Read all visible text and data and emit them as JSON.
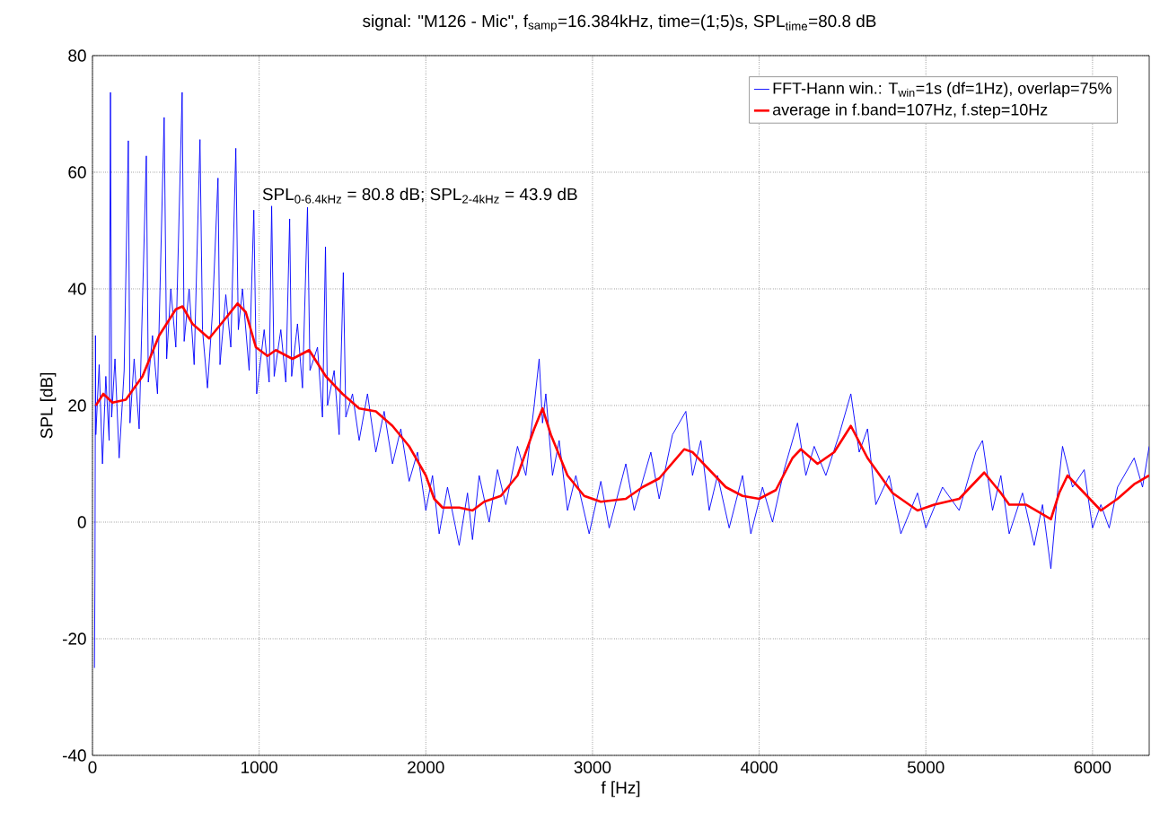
{
  "chart_data": {
    "type": "line",
    "title": "signal: \"M126 - Mic\",  f$_{samp}$=16.384kHz,  time=(1;5)s,  SPL$_{time}$=80.8 dB",
    "xlabel": "f [Hz]",
    "ylabel": "SPL [dB]",
    "annotations": [
      "SPL$_{0-6.4kHz}$ = 80.8 dB;    SPL$_{2-4kHz}$ = 43.9 dB"
    ],
    "xlim": [
      0,
      6340
    ],
    "ylim": [
      -40,
      80
    ],
    "xticks": [
      0,
      1000,
      2000,
      3000,
      4000,
      5000,
      6000
    ],
    "yticks": [
      -40,
      -20,
      0,
      20,
      40,
      60,
      80
    ],
    "grid": true,
    "legend": "top right",
    "line_style": "solid",
    "marker": "none",
    "series": [
      {
        "name": "FFT-Hann win.: T$_{win}$=1s (df=1Hz), overlap=75%",
        "color": "#0000ff",
        "x": [
          12,
          15,
          18,
          20,
          40,
          60,
          80,
          100,
          108,
          115,
          135,
          160,
          190,
          215,
          225,
          250,
          280,
          323,
          335,
          360,
          390,
          430,
          445,
          470,
          500,
          538,
          550,
          580,
          610,
          645,
          660,
          690,
          720,
          753,
          765,
          800,
          830,
          860,
          875,
          900,
          940,
          968,
          985,
          1030,
          1060,
          1075,
          1090,
          1130,
          1160,
          1183,
          1195,
          1230,
          1260,
          1290,
          1305,
          1350,
          1380,
          1398,
          1410,
          1450,
          1480,
          1505,
          1520,
          1560,
          1600,
          1650,
          1700,
          1750,
          1800,
          1850,
          1900,
          1950,
          2000,
          2040,
          2080,
          2130,
          2200,
          2250,
          2280,
          2320,
          2380,
          2430,
          2480,
          2550,
          2600,
          2650,
          2680,
          2700,
          2720,
          2760,
          2800,
          2850,
          2900,
          2980,
          3050,
          3100,
          3200,
          3250,
          3350,
          3400,
          3480,
          3560,
          3600,
          3650,
          3700,
          3750,
          3820,
          3900,
          3950,
          4020,
          4080,
          4150,
          4230,
          4280,
          4330,
          4400,
          4480,
          4550,
          4600,
          4650,
          4700,
          4780,
          4850,
          4950,
          5000,
          5100,
          5200,
          5300,
          5340,
          5400,
          5450,
          5500,
          5580,
          5650,
          5700,
          5750,
          5790,
          5820,
          5880,
          5950,
          6000,
          6050,
          6100,
          6150,
          6250,
          6300,
          6340
        ],
        "values": [
          -25,
          -8,
          32,
          15,
          27,
          10,
          25,
          14,
          73.7,
          18,
          28,
          11,
          26,
          65.4,
          17,
          28,
          16,
          62.8,
          24,
          32,
          22,
          69.4,
          28,
          40,
          30,
          73.7,
          31,
          40,
          27,
          65.6,
          33,
          23,
          36,
          59,
          27,
          39,
          30,
          64.1,
          33,
          40,
          26,
          53.5,
          22,
          33,
          24,
          54.2,
          25,
          33,
          24,
          52,
          25,
          34,
          23,
          54,
          26,
          30,
          18,
          47.2,
          20,
          26,
          15,
          42.8,
          18,
          22,
          14,
          22,
          12,
          19,
          10,
          16,
          7,
          12,
          2,
          8,
          -2,
          6,
          -4,
          5,
          -3,
          8,
          0,
          9,
          3,
          13,
          8,
          20,
          28,
          17,
          22,
          8,
          14,
          2,
          8,
          -2,
          7,
          -1,
          10,
          2,
          12,
          4,
          15,
          19,
          8,
          14,
          2,
          8,
          -1,
          8,
          -2,
          6,
          0,
          9,
          17,
          8,
          13,
          8,
          15,
          22,
          12,
          16,
          3,
          8,
          -2,
          5,
          -1,
          6,
          2,
          12,
          14,
          2,
          8,
          -2,
          5,
          -4,
          3,
          -8,
          5,
          13,
          6,
          9,
          -1,
          3,
          -1,
          6,
          11,
          6,
          13
        ]
      },
      {
        "name": "average in f.band=107Hz, f.step=10Hz",
        "color": "#ff0000",
        "x": [
          20,
          65,
          120,
          200,
          300,
          400,
          500,
          540,
          600,
          700,
          800,
          870,
          920,
          980,
          1050,
          1100,
          1200,
          1300,
          1400,
          1500,
          1600,
          1700,
          1800,
          1900,
          2000,
          2050,
          2100,
          2200,
          2280,
          2350,
          2450,
          2550,
          2650,
          2700,
          2750,
          2850,
          2950,
          3050,
          3200,
          3300,
          3400,
          3550,
          3600,
          3700,
          3800,
          3900,
          4000,
          4100,
          4200,
          4250,
          4350,
          4450,
          4550,
          4650,
          4800,
          4950,
          5050,
          5200,
          5300,
          5350,
          5450,
          5500,
          5600,
          5750,
          5800,
          5850,
          5950,
          6050,
          6150,
          6250,
          6340
        ],
        "values": [
          20,
          22,
          20.5,
          21,
          25,
          32,
          36.5,
          37,
          34,
          31.5,
          35,
          37.5,
          36,
          30,
          28.5,
          29.5,
          28,
          29.5,
          25,
          22,
          19.5,
          19,
          16.5,
          13,
          8,
          4,
          2.5,
          2.5,
          2,
          3.5,
          4.5,
          8,
          16,
          19.5,
          15,
          8,
          4.5,
          3.5,
          4,
          6,
          7.5,
          12.5,
          12,
          9,
          6,
          4.5,
          4,
          5.5,
          11,
          12.5,
          10,
          12,
          16.5,
          11,
          5,
          2,
          3,
          4,
          7,
          8.5,
          5,
          3,
          3,
          0.5,
          5,
          8,
          5,
          2,
          4,
          6.5,
          8
        ]
      }
    ]
  }
}
